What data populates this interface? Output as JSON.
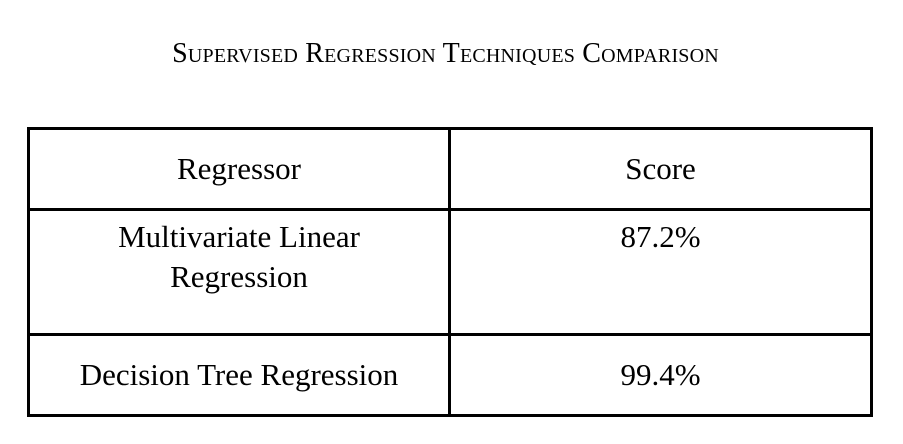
{
  "title": "Supervised Regression Techniques Comparison",
  "table": {
    "headers": [
      "Regressor",
      "Score"
    ],
    "rows": [
      [
        "Multivariate Linear Regression",
        "87.2%"
      ],
      [
        "Decision Tree Regression",
        "99.4%"
      ]
    ]
  }
}
